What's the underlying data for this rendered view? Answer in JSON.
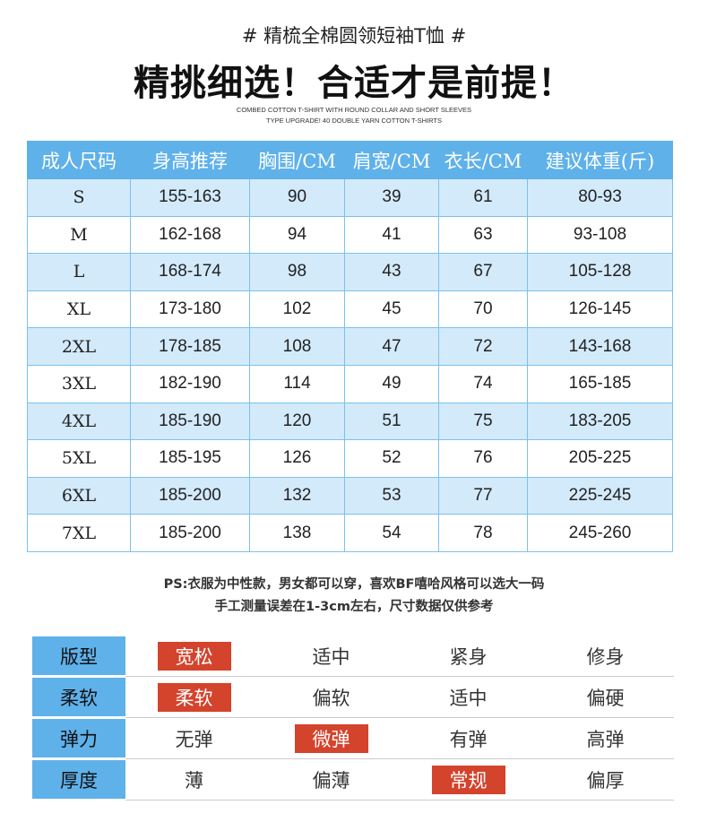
{
  "header": {
    "tag": "# 精梳全棉圆领短袖T恤 #",
    "headline": "精挑细选！合适才是前提！",
    "english": [
      "COMBED COTTON T-SHIRT WITH ROUND COLLAR AND SHORT SLEEVES",
      "TYPE UPGRADE! 40 DOUBLE YARN COTTON T-SHIRTS"
    ]
  },
  "size_table": {
    "headers": [
      "成人尺码",
      "身高推荐",
      "胸围/CM",
      "肩宽/CM",
      "衣长/CM",
      "建议体重(斤)"
    ],
    "rows": [
      [
        "S",
        "155-163",
        "90",
        "39",
        "61",
        "80-93"
      ],
      [
        "M",
        "162-168",
        "94",
        "41",
        "63",
        "93-108"
      ],
      [
        "L",
        "168-174",
        "98",
        "43",
        "67",
        "105-128"
      ],
      [
        "XL",
        "173-180",
        "102",
        "45",
        "70",
        "126-145"
      ],
      [
        "2XL",
        "178-185",
        "108",
        "47",
        "72",
        "143-168"
      ],
      [
        "3XL",
        "182-190",
        "114",
        "49",
        "74",
        "165-185"
      ],
      [
        "4XL",
        "185-190",
        "120",
        "51",
        "75",
        "183-205"
      ],
      [
        "5XL",
        "185-195",
        "126",
        "52",
        "76",
        "205-225"
      ],
      [
        "6XL",
        "185-200",
        "132",
        "53",
        "77",
        "225-245"
      ],
      [
        "7XL",
        "185-200",
        "138",
        "54",
        "78",
        "245-260"
      ]
    ]
  },
  "notes": [
    "PS:衣服为中性款，男女都可以穿，喜欢BF嘻哈风格可以选大一码",
    "手工测量误差在1-3cm左右，尺寸数据仅供参考"
  ],
  "attributes": [
    {
      "label": "版型",
      "options": [
        "宽松",
        "适中",
        "紧身",
        "修身"
      ],
      "selected": 0
    },
    {
      "label": "柔软",
      "options": [
        "柔软",
        "偏软",
        "适中",
        "偏硬"
      ],
      "selected": 0
    },
    {
      "label": "弹力",
      "options": [
        "无弹",
        "微弹",
        "有弹",
        "高弹"
      ],
      "selected": 1
    },
    {
      "label": "厚度",
      "options": [
        "薄",
        "偏薄",
        "常规",
        "偏厚"
      ],
      "selected": 2
    }
  ]
}
